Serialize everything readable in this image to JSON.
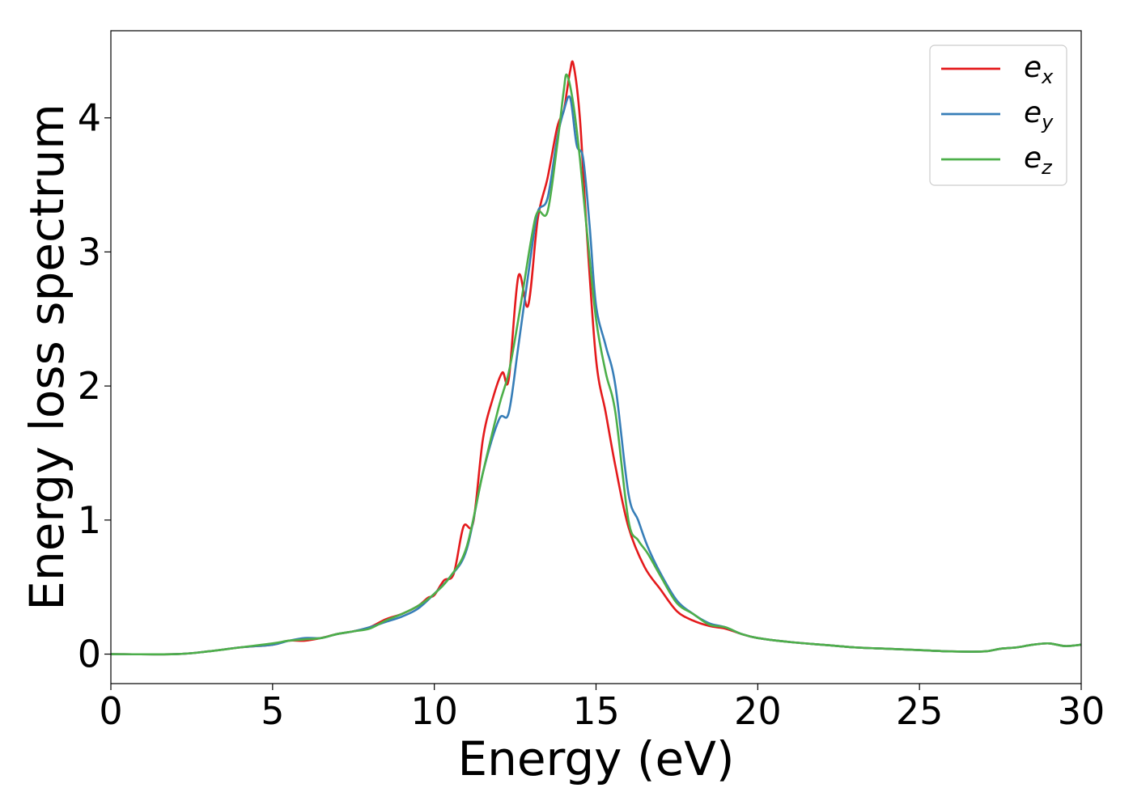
{
  "chart_data": {
    "type": "line",
    "xlabel": "Energy (eV)",
    "ylabel": "Energy loss spectrum",
    "xlim": [
      0,
      30
    ],
    "ylim": [
      -0.22,
      4.65
    ],
    "xticks": [
      0,
      5,
      10,
      15,
      20,
      25,
      30
    ],
    "yticks": [
      0,
      1,
      2,
      3,
      4
    ],
    "grid": false,
    "legend_position": "top-right",
    "series": [
      {
        "name": "e",
        "subscript": "x",
        "color": "#e41a1c",
        "x": [
          0,
          2,
          3,
          4,
          5,
          5.5,
          6,
          6.5,
          7,
          7.5,
          8,
          8.5,
          9,
          9.5,
          9.8,
          10,
          10.3,
          10.6,
          10.9,
          11.2,
          11.5,
          11.8,
          12.1,
          12.3,
          12.6,
          12.9,
          13.2,
          13.5,
          13.8,
          14.0,
          14.1,
          14.2,
          14.3,
          14.5,
          14.7,
          15.0,
          15.3,
          15.6,
          16.0,
          16.5,
          17,
          17.5,
          18,
          18.5,
          19,
          19.5,
          20,
          21,
          22,
          23,
          24,
          25,
          26,
          27,
          27.5,
          28,
          28.5,
          29,
          29.5,
          30
        ],
        "y": [
          0,
          0.0,
          0.02,
          0.05,
          0.07,
          0.1,
          0.1,
          0.12,
          0.15,
          0.17,
          0.2,
          0.26,
          0.3,
          0.36,
          0.42,
          0.44,
          0.55,
          0.6,
          0.95,
          0.98,
          1.6,
          1.9,
          2.1,
          2.05,
          2.82,
          2.6,
          3.25,
          3.55,
          3.93,
          4.05,
          4.2,
          4.35,
          4.4,
          4.0,
          3.2,
          2.2,
          1.8,
          1.4,
          0.95,
          0.65,
          0.48,
          0.32,
          0.25,
          0.21,
          0.19,
          0.15,
          0.12,
          0.09,
          0.07,
          0.05,
          0.04,
          0.03,
          0.02,
          0.02,
          0.04,
          0.05,
          0.07,
          0.08,
          0.06,
          0.07
        ]
      },
      {
        "name": "e",
        "subscript": "y",
        "color": "#377eb8",
        "x": [
          0,
          2,
          3,
          4,
          5,
          5.5,
          6,
          6.5,
          7,
          7.5,
          8,
          8.5,
          9,
          9.5,
          10,
          10.5,
          11,
          11.5,
          12,
          12.3,
          12.6,
          13,
          13.2,
          13.5,
          13.8,
          14.0,
          14.2,
          14.4,
          14.6,
          14.8,
          15.0,
          15.3,
          15.6,
          16,
          16.3,
          16.6,
          17,
          17.5,
          18,
          18.5,
          19,
          19.5,
          20,
          21,
          22,
          23,
          24,
          25,
          26,
          27,
          27.5,
          28,
          28.5,
          29,
          29.5,
          30
        ],
        "y": [
          0,
          0.0,
          0.02,
          0.05,
          0.07,
          0.1,
          0.12,
          0.12,
          0.15,
          0.17,
          0.2,
          0.24,
          0.28,
          0.34,
          0.45,
          0.58,
          0.78,
          1.35,
          1.75,
          1.8,
          2.3,
          3.0,
          3.3,
          3.4,
          3.85,
          4.05,
          4.15,
          3.8,
          3.7,
          3.2,
          2.6,
          2.3,
          2.0,
          1.2,
          1.0,
          0.8,
          0.6,
          0.4,
          0.3,
          0.23,
          0.2,
          0.15,
          0.12,
          0.09,
          0.07,
          0.05,
          0.04,
          0.03,
          0.02,
          0.02,
          0.04,
          0.05,
          0.07,
          0.08,
          0.06,
          0.07
        ]
      },
      {
        "name": "e",
        "subscript": "z",
        "color": "#4daf4a",
        "x": [
          0,
          2,
          3,
          4,
          5,
          5.5,
          6,
          6.5,
          7,
          7.5,
          8,
          8.5,
          9,
          9.5,
          10,
          10.5,
          11,
          11.5,
          12,
          12.3,
          12.6,
          13,
          13.2,
          13.5,
          13.8,
          14.0,
          14.1,
          14.3,
          14.5,
          14.7,
          15.0,
          15.3,
          15.6,
          16,
          16.3,
          16.6,
          17,
          17.5,
          18,
          18.5,
          19,
          19.5,
          20,
          21,
          22,
          23,
          24,
          25,
          26,
          27,
          27.5,
          28,
          28.5,
          29,
          29.5,
          30
        ],
        "y": [
          0,
          0.0,
          0.02,
          0.05,
          0.08,
          0.1,
          0.11,
          0.12,
          0.15,
          0.17,
          0.19,
          0.25,
          0.3,
          0.36,
          0.45,
          0.58,
          0.8,
          1.35,
          1.85,
          2.1,
          2.5,
          3.1,
          3.3,
          3.3,
          3.8,
          4.2,
          4.32,
          4.1,
          3.7,
          3.2,
          2.5,
          2.1,
          1.8,
          1.0,
          0.85,
          0.75,
          0.58,
          0.38,
          0.3,
          0.22,
          0.2,
          0.15,
          0.12,
          0.09,
          0.07,
          0.05,
          0.04,
          0.03,
          0.02,
          0.02,
          0.04,
          0.05,
          0.07,
          0.08,
          0.06,
          0.07
        ]
      }
    ]
  }
}
